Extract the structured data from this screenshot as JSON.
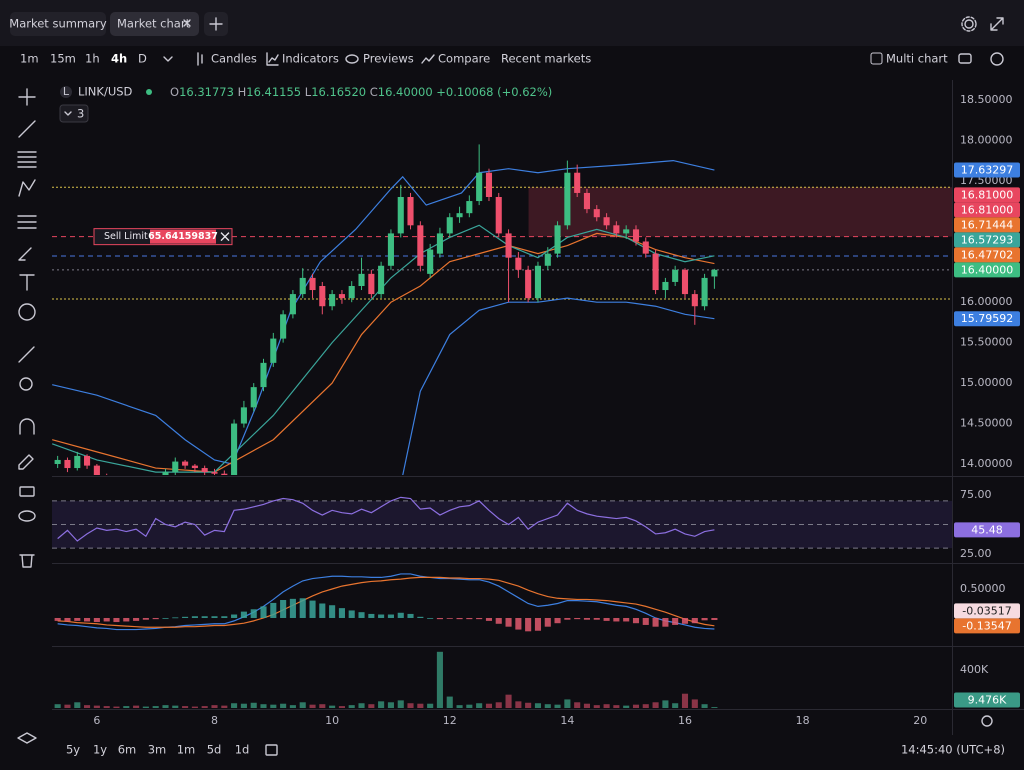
{
  "tabs": [
    "Market summary",
    "Market chart"
  ],
  "toolbar": {
    "intervals": [
      "1m",
      "15m",
      "1h",
      "4h",
      "D"
    ],
    "buttons": [
      "Candles",
      "Indicators",
      "Previews",
      "Compare",
      "Recent markets"
    ],
    "multi_chart": "Multi chart"
  },
  "legend": {
    "symbol": "LINK/USD",
    "symbol_icon": "L",
    "o": "O",
    "open": "16.31773",
    "h": "H",
    "high": "16.41155",
    "l": "L",
    "low": "16.16520",
    "c": "C",
    "close": "16.40000",
    "change": "+0.10068 (+0.62%)",
    "indicator_count": "3"
  },
  "order": {
    "label": "Sell Limit",
    "amount": "65.64159837"
  },
  "ranges": [
    "5y",
    "1y",
    "6m",
    "3m",
    "1m",
    "5d",
    "1d"
  ],
  "clock": "14:45:40 (UTC+8)",
  "chart_data": {
    "type": "candlestick",
    "x": [
      5.333,
      5.5,
      5.667,
      5.833,
      6,
      6.167,
      6.333,
      6.5,
      6.667,
      6.833,
      7,
      7.167,
      7.333,
      7.5,
      7.667,
      7.833,
      8,
      8.167,
      8.333,
      8.5,
      8.667,
      8.833,
      9,
      9.167,
      9.333,
      9.5,
      9.667,
      9.833,
      10,
      10.167,
      10.333,
      10.5,
      10.667,
      10.833,
      11,
      11.167,
      11.333,
      11.5,
      11.667,
      11.833,
      12,
      12.167,
      12.333,
      12.5,
      12.667,
      12.833,
      13,
      13.167,
      13.333,
      13.5,
      13.667,
      13.833,
      14,
      14.167,
      14.333,
      14.5,
      14.667,
      14.833,
      15,
      15.167,
      15.333,
      15.5,
      15.667,
      15.833,
      16,
      16.167,
      16.333,
      16.5
    ],
    "open": [
      14.0,
      14.05,
      13.95,
      14.1,
      13.98,
      13.85,
      13.75,
      13.7,
      13.72,
      13.68,
      13.75,
      13.8,
      13.9,
      14.03,
      13.98,
      13.95,
      13.9,
      13.88,
      13.85,
      14.5,
      14.7,
      14.95,
      15.25,
      15.55,
      15.85,
      16.1,
      16.3,
      16.2,
      15.95,
      16.1,
      16.05,
      16.2,
      16.35,
      16.1,
      16.45,
      16.85,
      17.3,
      16.95,
      16.35,
      16.6,
      16.85,
      17.05,
      17.1,
      17.25,
      17.6,
      17.3,
      16.85,
      16.55,
      16.4,
      16.05,
      16.45,
      16.6,
      16.95,
      17.6,
      17.35,
      17.15,
      17.05,
      16.95,
      16.85,
      16.9,
      16.75,
      16.6,
      16.15,
      16.25,
      16.4,
      16.1,
      15.95,
      16.31773
    ],
    "high": [
      14.1,
      14.08,
      14.15,
      14.12,
      14.0,
      13.88,
      13.8,
      13.78,
      13.76,
      13.8,
      13.85,
      13.94,
      14.08,
      14.05,
      14.0,
      13.98,
      13.94,
      13.92,
      14.55,
      14.78,
      15.0,
      15.3,
      15.62,
      15.9,
      16.15,
      16.42,
      16.35,
      16.25,
      16.15,
      16.15,
      16.26,
      16.55,
      16.4,
      16.5,
      16.9,
      17.45,
      17.35,
      17.0,
      16.72,
      16.92,
      17.1,
      17.18,
      17.32,
      17.95,
      17.65,
      17.35,
      16.9,
      16.62,
      16.45,
      16.5,
      16.68,
      17.0,
      17.75,
      17.7,
      17.4,
      17.2,
      17.1,
      17.0,
      16.95,
      16.95,
      16.8,
      16.65,
      16.3,
      16.45,
      16.42,
      16.15,
      16.35,
      16.41155
    ],
    "low": [
      13.95,
      13.9,
      13.92,
      13.94,
      13.8,
      13.7,
      13.62,
      13.65,
      13.6,
      13.64,
      13.7,
      13.76,
      13.86,
      13.94,
      13.9,
      13.86,
      13.84,
      13.8,
      13.82,
      14.45,
      14.65,
      14.9,
      15.2,
      15.5,
      15.8,
      16.05,
      16.05,
      15.85,
      15.9,
      15.98,
      16.0,
      16.15,
      16.05,
      16.05,
      16.4,
      16.8,
      16.9,
      16.38,
      16.3,
      16.55,
      16.8,
      16.98,
      17.05,
      17.2,
      17.25,
      16.8,
      16.0,
      16.3,
      16.0,
      16.0,
      16.4,
      16.55,
      16.9,
      17.3,
      17.1,
      17.0,
      16.9,
      16.8,
      16.78,
      16.7,
      16.55,
      16.1,
      16.05,
      16.2,
      16.05,
      15.72,
      15.9,
      16.1652
    ],
    "close": [
      14.05,
      13.95,
      14.1,
      13.98,
      13.85,
      13.75,
      13.7,
      13.72,
      13.68,
      13.75,
      13.8,
      13.9,
      14.03,
      13.98,
      13.95,
      13.9,
      13.88,
      13.85,
      14.5,
      14.7,
      14.95,
      15.25,
      15.55,
      15.85,
      16.1,
      16.3,
      16.15,
      15.95,
      16.1,
      16.05,
      16.2,
      16.35,
      16.1,
      16.45,
      16.85,
      17.3,
      16.95,
      16.45,
      16.65,
      16.85,
      17.05,
      17.1,
      17.25,
      17.6,
      17.3,
      16.85,
      16.55,
      16.4,
      16.05,
      16.45,
      16.6,
      16.95,
      17.6,
      17.35,
      17.15,
      17.05,
      16.95,
      16.85,
      16.9,
      16.75,
      16.6,
      16.15,
      16.25,
      16.4,
      16.1,
      15.95,
      16.3,
      16.4
    ],
    "up_color": "#3dbd82",
    "down_color": "#ee4f6c",
    "xlim": [
      5.237,
      20.54
    ],
    "xticks": [
      6,
      8,
      10,
      12,
      14,
      16,
      18,
      20
    ],
    "ylim": [
      13.864,
      18.746
    ],
    "yticks": [
      {
        "value": 14,
        "label": "14.00000"
      },
      {
        "value": 14.5,
        "label": "14.50000"
      },
      {
        "value": 15,
        "label": "15.00000"
      },
      {
        "value": 15.5,
        "label": "15.50000"
      },
      {
        "value": 16,
        "label": "16.00000"
      },
      {
        "value": 17.5,
        "label": "17.50000"
      },
      {
        "value": 18,
        "label": "18.00000"
      },
      {
        "value": 18.5,
        "label": "18.50000"
      }
    ],
    "grid": false,
    "overlays": [
      {
        "color": "#3d7fe0",
        "x": [
          5.24,
          6,
          7,
          7.5,
          8,
          8.3,
          8.7,
          9.3,
          9.8,
          10.4,
          11,
          11.2,
          11.6,
          12.2,
          12.5,
          13,
          13.5,
          14,
          15,
          15.8,
          16.5
        ],
        "values": [
          14.98,
          14.85,
          14.6,
          14.3,
          14.05,
          14.0,
          14.7,
          15.9,
          16.5,
          16.9,
          17.4,
          17.55,
          17.2,
          17.35,
          17.6,
          17.65,
          17.6,
          17.65,
          17.7,
          17.75,
          17.63297
        ]
      },
      {
        "color": "#3d7fe0",
        "x": [
          11.2,
          11.5,
          12,
          12.5,
          13,
          13.5,
          14,
          14.5,
          15,
          15.5,
          16,
          16.5
        ],
        "values": [
          13.86,
          14.9,
          15.6,
          15.9,
          16.0,
          16.0,
          16.05,
          16.0,
          16.0,
          15.95,
          15.85,
          15.79592
        ]
      },
      {
        "color": "#e8742f",
        "x": [
          5.24,
          6,
          7,
          8,
          9,
          10,
          10.5,
          11,
          11.5,
          12,
          12.5,
          13,
          13.5,
          14,
          14.5,
          15,
          15.5,
          16,
          16.5
        ],
        "values": [
          14.3,
          14.15,
          13.95,
          13.9,
          14.3,
          15.0,
          15.6,
          16.0,
          16.2,
          16.5,
          16.6,
          16.7,
          16.6,
          16.7,
          16.85,
          16.8,
          16.65,
          16.55,
          16.47702
        ]
      },
      {
        "color": "#3aa59a",
        "x": [
          5.24,
          6,
          7,
          8,
          9,
          10,
          10.5,
          11,
          11.5,
          12,
          12.5,
          13,
          13.5,
          14,
          14.5,
          15,
          15.5,
          16,
          16.5
        ],
        "values": [
          14.25,
          14.05,
          13.9,
          13.9,
          14.6,
          15.5,
          15.9,
          16.3,
          16.6,
          16.8,
          16.95,
          16.7,
          16.55,
          16.8,
          16.9,
          16.8,
          16.6,
          16.5,
          16.57293
        ]
      }
    ],
    "zone": {
      "x": 13.34,
      "top": 17.42,
      "bottom": 16.81,
      "color": "#e8465f"
    },
    "hlines": [
      {
        "value": 17.42,
        "color": "#d9c24a",
        "dash": "2 2"
      },
      {
        "value": 16.04,
        "color": "#d9c24a",
        "dash": "2 2"
      },
      {
        "value": 16.81,
        "color": "#e8465f",
        "dash": "5 4"
      },
      {
        "value": 16.57,
        "color": "#4a78e0",
        "dash": "5 4"
      },
      {
        "value": 16.4,
        "color": "#7d7c88",
        "dash": "2 3"
      }
    ],
    "price_labels": [
      {
        "value": 17.63297,
        "color": "#3d7fe0"
      },
      {
        "value": 16.81,
        "label": "16.81000",
        "color": "#e8465f"
      },
      {
        "value": 16.81,
        "label": "16.81000",
        "color": "#e8465f"
      },
      {
        "value": 16.71444,
        "color": "#e8742f"
      },
      {
        "value": 16.57293,
        "color": "#3aa59a"
      },
      {
        "value": 16.47702,
        "color": "#e8742f"
      },
      {
        "value": 16.4,
        "label": "16.40000",
        "color": "#3dbd82"
      },
      {
        "value": 15.79592,
        "color": "#3d7fe0"
      }
    ],
    "panes": [
      {
        "type": "line",
        "color": "#8c6fe0",
        "ylim": [
          18.2,
          89.4
        ],
        "yticks": [
          {
            "value": 25,
            "label": "25.00"
          },
          {
            "value": 75,
            "label": "75.00"
          }
        ],
        "band": [
          30,
          70
        ],
        "hlines": [
          30,
          50,
          70
        ],
        "values": [
          38,
          45,
          36,
          42,
          47,
          45,
          46,
          44,
          46,
          40,
          55,
          50,
          48,
          52,
          50,
          41,
          45,
          44,
          62,
          63,
          65,
          67,
          70,
          72,
          71,
          68,
          62,
          58,
          62,
          60,
          59,
          63,
          60,
          65,
          70,
          73,
          72,
          63,
          64,
          58,
          62,
          65,
          66,
          70,
          62,
          55,
          50,
          56,
          46,
          52,
          55,
          58,
          68,
          62,
          59,
          57,
          56,
          55,
          56,
          53,
          48,
          42,
          43,
          46,
          42,
          40,
          44,
          45.48
        ]
      },
      {
        "type": "macd",
        "ylim": [
          -0.466,
          0.914
        ],
        "yticks": [
          {
            "value": 0.5,
            "label": "0.50000"
          }
        ],
        "series": [
          {
            "kind": "line",
            "color": "#3d7fe0",
            "values": [
              -0.1,
              -0.12,
              -0.13,
              -0.15,
              -0.17,
              -0.18,
              -0.2,
              -0.2,
              -0.2,
              -0.19,
              -0.18,
              -0.16,
              -0.15,
              -0.13,
              -0.12,
              -0.11,
              -0.1,
              -0.1,
              -0.05,
              0.02,
              0.1,
              0.2,
              0.32,
              0.45,
              0.55,
              0.64,
              0.68,
              0.7,
              0.72,
              0.72,
              0.71,
              0.71,
              0.7,
              0.7,
              0.72,
              0.76,
              0.76,
              0.72,
              0.7,
              0.68,
              0.68,
              0.67,
              0.66,
              0.66,
              0.62,
              0.55,
              0.45,
              0.35,
              0.25,
              0.2,
              0.22,
              0.25,
              0.3,
              0.3,
              0.29,
              0.28,
              0.25,
              0.22,
              0.2,
              0.15,
              0.08,
              0.0,
              -0.05,
              -0.08,
              -0.12,
              -0.16,
              -0.18,
              -0.19
            ]
          },
          {
            "kind": "line",
            "color": "#e8742f",
            "badge": true,
            "values": [
              -0.05,
              -0.06,
              -0.08,
              -0.09,
              -0.1,
              -0.12,
              -0.13,
              -0.14,
              -0.15,
              -0.16,
              -0.16,
              -0.16,
              -0.16,
              -0.15,
              -0.15,
              -0.14,
              -0.13,
              -0.13,
              -0.11,
              -0.09,
              -0.05,
              0.0,
              0.06,
              0.14,
              0.22,
              0.3,
              0.38,
              0.45,
              0.5,
              0.55,
              0.58,
              0.61,
              0.63,
              0.64,
              0.66,
              0.67,
              0.69,
              0.7,
              0.7,
              0.7,
              0.69,
              0.69,
              0.68,
              0.68,
              0.67,
              0.65,
              0.6,
              0.55,
              0.48,
              0.42,
              0.37,
              0.34,
              0.33,
              0.32,
              0.32,
              0.31,
              0.3,
              0.28,
              0.26,
              0.24,
              0.2,
              0.15,
              0.1,
              0.04,
              -0.02,
              -0.07,
              -0.11,
              -0.13547
            ]
          },
          {
            "kind": "bar",
            "color": "#3aa59a",
            "down_color": "#e05a6e",
            "badge_color": "#f6dbe0",
            "badge": true,
            "values": [
              -0.05,
              -0.06,
              -0.05,
              -0.06,
              -0.07,
              -0.06,
              -0.07,
              -0.06,
              -0.05,
              -0.03,
              -0.02,
              0,
              0.01,
              0.02,
              0.03,
              0.03,
              0.03,
              0.03,
              0.06,
              0.11,
              0.15,
              0.2,
              0.26,
              0.31,
              0.33,
              0.34,
              0.3,
              0.25,
              0.22,
              0.17,
              0.13,
              0.1,
              0.07,
              0.06,
              0.06,
              0.09,
              0.07,
              0.02,
              0,
              -0.02,
              -0.01,
              -0.02,
              -0.02,
              -0.02,
              -0.05,
              -0.1,
              -0.15,
              -0.2,
              -0.23,
              -0.22,
              -0.15,
              -0.09,
              -0.03,
              -0.02,
              -0.03,
              -0.03,
              -0.05,
              -0.06,
              -0.06,
              -0.09,
              -0.12,
              -0.15,
              -0.15,
              -0.12,
              -0.1,
              -0.09,
              -0.04,
              -0.03517
            ]
          }
        ]
      },
      {
        "type": "bar",
        "ylim": [
          0,
          630000
        ],
        "yticks": [
          {
            "value": 400000,
            "label": "400K"
          }
        ],
        "values": [
          40000,
          35000,
          60000,
          30000,
          25000,
          20000,
          15000,
          20000,
          25000,
          15000,
          20000,
          30000,
          25000,
          20000,
          15000,
          20000,
          30000,
          25000,
          50000,
          45000,
          55000,
          40000,
          35000,
          45000,
          30000,
          60000,
          35000,
          40000,
          25000,
          20000,
          30000,
          50000,
          40000,
          70000,
          60000,
          80000,
          50000,
          45000,
          45000,
          590000,
          120000,
          30000,
          35000,
          50000,
          45000,
          60000,
          140000,
          70000,
          55000,
          50000,
          40000,
          35000,
          90000,
          60000,
          45000,
          30000,
          40000,
          30000,
          25000,
          35000,
          40000,
          60000,
          80000,
          50000,
          150000,
          90000,
          40000,
          9476
        ],
        "badge": {
          "value": 9476,
          "label": "9.476K",
          "color": "#3a9a86"
        }
      }
    ]
  }
}
